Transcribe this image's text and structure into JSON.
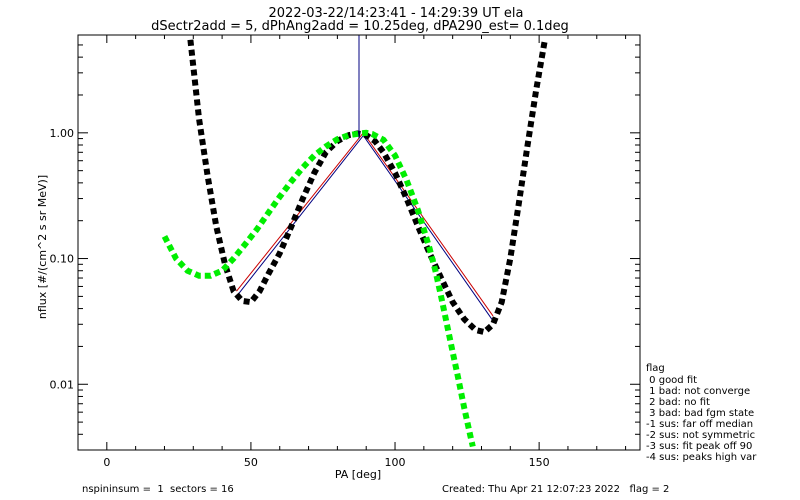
{
  "chart_data": {
    "type": "line",
    "title": "2022-03-22/14:23:41 - 14:29:39 UT ela",
    "subtitle": "dSectr2add = 5, dPhAng2add = 10.25deg, dPA290_est=    0.1deg",
    "xlabel": "PA [deg]",
    "ylabel": "nflux [#/(cm^2 s sr MeV)]",
    "xlim": [
      -10,
      185
    ],
    "ylim": [
      0.003,
      6
    ],
    "yscale": "log",
    "grid": false,
    "xticks": [
      0,
      50,
      100,
      150
    ],
    "xtick_labels": [
      "0",
      "50",
      "100",
      "150"
    ],
    "yticks": [
      0.01,
      0.1,
      1
    ],
    "ytick_labels": [
      "0.01",
      "0.10",
      "1.00"
    ],
    "series": [
      {
        "style": "thin line",
        "color": "#000080",
        "x": [
          45,
          89,
          134
        ],
        "y": [
          0.05,
          0.95,
          0.032
        ]
      },
      {
        "style": "thin line",
        "color": "#cc0000",
        "x": [
          45,
          89,
          134
        ],
        "y": [
          0.055,
          1.0,
          0.035
        ]
      },
      {
        "style": "thick dotted",
        "color": "#000000",
        "x": [
          29,
          32,
          35,
          38,
          41,
          44,
          47,
          50,
          53,
          56,
          60,
          64,
          68,
          72,
          76,
          80,
          84,
          87,
          90,
          93,
          96,
          100,
          104,
          108,
          112,
          116,
          120,
          124,
          128,
          131,
          134,
          137,
          140,
          143,
          146,
          149,
          152
        ],
        "y": [
          5.5,
          1.3,
          0.45,
          0.18,
          0.09,
          0.055,
          0.046,
          0.045,
          0.055,
          0.075,
          0.11,
          0.18,
          0.3,
          0.48,
          0.7,
          0.86,
          0.96,
          0.99,
          0.96,
          0.86,
          0.7,
          0.48,
          0.3,
          0.18,
          0.11,
          0.07,
          0.045,
          0.033,
          0.027,
          0.026,
          0.03,
          0.045,
          0.1,
          0.28,
          0.8,
          2.2,
          5.5
        ]
      },
      {
        "style": "thick dotted",
        "color": "#00ee00",
        "x": [
          20,
          24,
          28,
          32,
          36,
          40,
          44,
          48,
          52,
          56,
          60,
          64,
          68,
          72,
          76,
          80,
          84,
          88,
          90,
          92,
          96,
          100,
          104,
          108,
          112,
          114,
          116,
          118,
          120,
          122,
          124,
          126,
          127
        ],
        "y": [
          0.15,
          0.1,
          0.08,
          0.073,
          0.073,
          0.08,
          0.1,
          0.13,
          0.17,
          0.23,
          0.31,
          0.41,
          0.53,
          0.66,
          0.78,
          0.89,
          0.96,
          0.99,
          1.0,
          0.98,
          0.88,
          0.66,
          0.42,
          0.24,
          0.12,
          0.08,
          0.05,
          0.03,
          0.018,
          0.011,
          0.0065,
          0.004,
          0.0032
        ]
      }
    ],
    "annotations": [
      {
        "type": "vline",
        "color": "#000080",
        "x": 87.5,
        "y_from": 0.9,
        "y_to": 6
      }
    ],
    "legend": {
      "placement": "bottom-right outside",
      "title": "flag",
      "entries": [
        " 0 good fit",
        " 1 bad: not converge",
        " 2 bad: no fit",
        " 3 bad: bad fgm state",
        "-1 sus: far off median",
        "-2 sus: not symmetric",
        "-3 sus: fit peak off 90",
        "-4 sus: peaks high var"
      ]
    },
    "footer": {
      "left": "nspininsum =  1  sectors = 16",
      "right": "Created: Thu Apr 21 12:07:23 2022   flag = 2"
    }
  }
}
